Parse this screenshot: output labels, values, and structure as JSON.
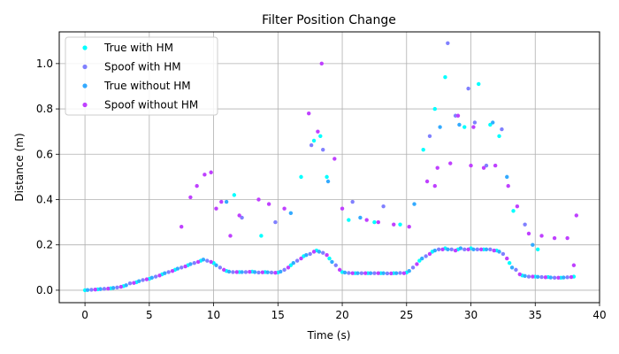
{
  "chart_data": {
    "type": "scatter",
    "title": "Filter Position Change",
    "xlabel": "Time (s)",
    "ylabel": "Distance (m)",
    "xlim": [
      -2,
      40
    ],
    "ylim": [
      -0.055,
      1.14
    ],
    "xticks": [
      0,
      5,
      10,
      15,
      20,
      25,
      30,
      35,
      40
    ],
    "yticks": [
      0.0,
      0.2,
      0.4,
      0.6,
      0.8,
      1.0
    ],
    "grid": true,
    "legend_position": "top-left",
    "series": [
      {
        "name": "True with HM",
        "color": "#00ffff",
        "points": [
          [
            0,
            0
          ],
          [
            1,
            0.004
          ],
          [
            2,
            0.008
          ],
          [
            3,
            0.018
          ],
          [
            4,
            0.035
          ],
          [
            5,
            0.05
          ],
          [
            6,
            0.07
          ],
          [
            7,
            0.09
          ],
          [
            8,
            0.11
          ],
          [
            9,
            0.13
          ],
          [
            10,
            0.12
          ],
          [
            11,
            0.085
          ],
          [
            12,
            0.08
          ],
          [
            13,
            0.082
          ],
          [
            14,
            0.08
          ],
          [
            15,
            0.078
          ],
          [
            16,
            0.11
          ],
          [
            17,
            0.15
          ],
          [
            18,
            0.175
          ],
          [
            19,
            0.14
          ],
          [
            20,
            0.08
          ],
          [
            21,
            0.075
          ],
          [
            22,
            0.075
          ],
          [
            23,
            0.075
          ],
          [
            24,
            0.075
          ],
          [
            25,
            0.078
          ],
          [
            26,
            0.13
          ],
          [
            27,
            0.17
          ],
          [
            28,
            0.185
          ],
          [
            29,
            0.18
          ],
          [
            30,
            0.185
          ],
          [
            31,
            0.18
          ],
          [
            32,
            0.175
          ],
          [
            33,
            0.12
          ],
          [
            34,
            0.065
          ],
          [
            35,
            0.06
          ],
          [
            36,
            0.058
          ],
          [
            37,
            0.055
          ],
          [
            38,
            0.06
          ],
          [
            11.6,
            0.42
          ],
          [
            13.7,
            0.24
          ],
          [
            16.8,
            0.5
          ],
          [
            17.8,
            0.66
          ],
          [
            18.3,
            0.68
          ],
          [
            18.8,
            0.5
          ],
          [
            20.5,
            0.31
          ],
          [
            22.5,
            0.3
          ],
          [
            24.5,
            0.29
          ],
          [
            26.3,
            0.62
          ],
          [
            27.2,
            0.8
          ],
          [
            28,
            0.94
          ],
          [
            29.5,
            0.72
          ],
          [
            30.6,
            0.91
          ],
          [
            31.5,
            0.73
          ],
          [
            32.2,
            0.68
          ],
          [
            33.3,
            0.35
          ],
          [
            35.2,
            0.18
          ]
        ]
      },
      {
        "name": "Spoof with HM",
        "color": "#8080ff",
        "points": [
          [
            0.5,
            0.002
          ],
          [
            1.5,
            0.006
          ],
          [
            2.5,
            0.012
          ],
          [
            3.5,
            0.03
          ],
          [
            4.5,
            0.045
          ],
          [
            5.5,
            0.06
          ],
          [
            6.5,
            0.08
          ],
          [
            7.5,
            0.1
          ],
          [
            8.5,
            0.12
          ],
          [
            9.5,
            0.13
          ],
          [
            10.5,
            0.1
          ],
          [
            11.5,
            0.08
          ],
          [
            12.5,
            0.08
          ],
          [
            13.5,
            0.078
          ],
          [
            14.5,
            0.078
          ],
          [
            15.5,
            0.09
          ],
          [
            16.5,
            0.13
          ],
          [
            17.5,
            0.16
          ],
          [
            18.5,
            0.165
          ],
          [
            19.5,
            0.11
          ],
          [
            20.5,
            0.076
          ],
          [
            21.5,
            0.075
          ],
          [
            22.5,
            0.075
          ],
          [
            23.5,
            0.074
          ],
          [
            24.5,
            0.076
          ],
          [
            25.5,
            0.1
          ],
          [
            26.5,
            0.15
          ],
          [
            27.5,
            0.18
          ],
          [
            28.5,
            0.18
          ],
          [
            29.5,
            0.18
          ],
          [
            30.5,
            0.18
          ],
          [
            31.5,
            0.18
          ],
          [
            32.5,
            0.16
          ],
          [
            33.5,
            0.09
          ],
          [
            34.5,
            0.06
          ],
          [
            35.5,
            0.058
          ],
          [
            36.5,
            0.055
          ],
          [
            37.5,
            0.057
          ],
          [
            12.2,
            0.32
          ],
          [
            14.8,
            0.3
          ],
          [
            17.6,
            0.64
          ],
          [
            18.5,
            0.62
          ],
          [
            20.8,
            0.39
          ],
          [
            23.2,
            0.37
          ],
          [
            26.8,
            0.68
          ],
          [
            28.2,
            1.09
          ],
          [
            28.8,
            0.77
          ],
          [
            29.8,
            0.89
          ],
          [
            30.3,
            0.74
          ],
          [
            31.2,
            0.55
          ],
          [
            32.4,
            0.71
          ],
          [
            34.2,
            0.29
          ]
        ]
      },
      {
        "name": "True without HM",
        "color": "#33aaff",
        "points": [
          [
            0.2,
            0.001
          ],
          [
            1.2,
            0.005
          ],
          [
            2.2,
            0.01
          ],
          [
            3.2,
            0.022
          ],
          [
            4.2,
            0.04
          ],
          [
            5.2,
            0.055
          ],
          [
            6.2,
            0.075
          ],
          [
            7.2,
            0.095
          ],
          [
            8.2,
            0.115
          ],
          [
            9.2,
            0.135
          ],
          [
            10.2,
            0.11
          ],
          [
            11.2,
            0.082
          ],
          [
            12.2,
            0.08
          ],
          [
            13.2,
            0.08
          ],
          [
            14.2,
            0.079
          ],
          [
            15.2,
            0.082
          ],
          [
            16.2,
            0.12
          ],
          [
            17.2,
            0.155
          ],
          [
            18.2,
            0.17
          ],
          [
            19.2,
            0.125
          ],
          [
            20.2,
            0.078
          ],
          [
            21.2,
            0.075
          ],
          [
            22.2,
            0.075
          ],
          [
            23.2,
            0.075
          ],
          [
            24.2,
            0.075
          ],
          [
            25.2,
            0.085
          ],
          [
            26.2,
            0.14
          ],
          [
            27.2,
            0.175
          ],
          [
            28.2,
            0.18
          ],
          [
            29.2,
            0.185
          ],
          [
            30.2,
            0.18
          ],
          [
            31.2,
            0.18
          ],
          [
            32.2,
            0.17
          ],
          [
            33.2,
            0.1
          ],
          [
            34.2,
            0.063
          ],
          [
            35.2,
            0.059
          ],
          [
            36.2,
            0.056
          ],
          [
            37.2,
            0.056
          ],
          [
            11.0,
            0.39
          ],
          [
            16.0,
            0.34
          ],
          [
            18.9,
            0.48
          ],
          [
            21.4,
            0.32
          ],
          [
            25.6,
            0.38
          ],
          [
            27.6,
            0.72
          ],
          [
            29.1,
            0.73
          ],
          [
            31.7,
            0.74
          ],
          [
            32.8,
            0.5
          ],
          [
            34.8,
            0.2
          ]
        ]
      },
      {
        "name": "Spoof without HM",
        "color": "#bf40ff",
        "points": [
          [
            0.8,
            0.003
          ],
          [
            1.8,
            0.007
          ],
          [
            2.8,
            0.015
          ],
          [
            3.8,
            0.032
          ],
          [
            4.8,
            0.048
          ],
          [
            5.8,
            0.065
          ],
          [
            6.8,
            0.085
          ],
          [
            7.8,
            0.105
          ],
          [
            8.8,
            0.125
          ],
          [
            9.8,
            0.125
          ],
          [
            10.8,
            0.09
          ],
          [
            11.8,
            0.08
          ],
          [
            12.8,
            0.081
          ],
          [
            13.8,
            0.079
          ],
          [
            14.8,
            0.077
          ],
          [
            15.8,
            0.1
          ],
          [
            16.8,
            0.14
          ],
          [
            17.8,
            0.17
          ],
          [
            18.8,
            0.155
          ],
          [
            19.8,
            0.09
          ],
          [
            20.8,
            0.075
          ],
          [
            21.8,
            0.075
          ],
          [
            22.8,
            0.075
          ],
          [
            23.8,
            0.074
          ],
          [
            24.8,
            0.075
          ],
          [
            25.8,
            0.115
          ],
          [
            26.8,
            0.16
          ],
          [
            27.8,
            0.18
          ],
          [
            28.8,
            0.175
          ],
          [
            29.8,
            0.18
          ],
          [
            30.8,
            0.18
          ],
          [
            31.8,
            0.175
          ],
          [
            32.8,
            0.14
          ],
          [
            33.8,
            0.07
          ],
          [
            34.8,
            0.06
          ],
          [
            35.8,
            0.057
          ],
          [
            36.8,
            0.055
          ],
          [
            37.8,
            0.058
          ],
          [
            7.5,
            0.28
          ],
          [
            8.2,
            0.41
          ],
          [
            8.7,
            0.46
          ],
          [
            9.3,
            0.51
          ],
          [
            9.8,
            0.52
          ],
          [
            10.2,
            0.36
          ],
          [
            10.6,
            0.39
          ],
          [
            11.3,
            0.24
          ],
          [
            12.0,
            0.33
          ],
          [
            13.5,
            0.4
          ],
          [
            14.3,
            0.38
          ],
          [
            15.5,
            0.36
          ],
          [
            17.4,
            0.78
          ],
          [
            18.1,
            0.7
          ],
          [
            18.4,
            1.0
          ],
          [
            19.4,
            0.58
          ],
          [
            20.0,
            0.36
          ],
          [
            21.9,
            0.31
          ],
          [
            22.8,
            0.3
          ],
          [
            24.0,
            0.29
          ],
          [
            25.2,
            0.28
          ],
          [
            26.6,
            0.48
          ],
          [
            27.4,
            0.54
          ],
          [
            28.4,
            0.56
          ],
          [
            30.0,
            0.55
          ],
          [
            31.0,
            0.54
          ],
          [
            31.9,
            0.55
          ],
          [
            32.9,
            0.46
          ],
          [
            33.6,
            0.37
          ],
          [
            34.5,
            0.25
          ],
          [
            35.5,
            0.24
          ],
          [
            36.5,
            0.23
          ],
          [
            37.5,
            0.23
          ],
          [
            38.2,
            0.33
          ],
          [
            38.0,
            0.11
          ],
          [
            27.2,
            0.46
          ],
          [
            29.0,
            0.77
          ],
          [
            30.2,
            0.72
          ]
        ]
      }
    ]
  }
}
